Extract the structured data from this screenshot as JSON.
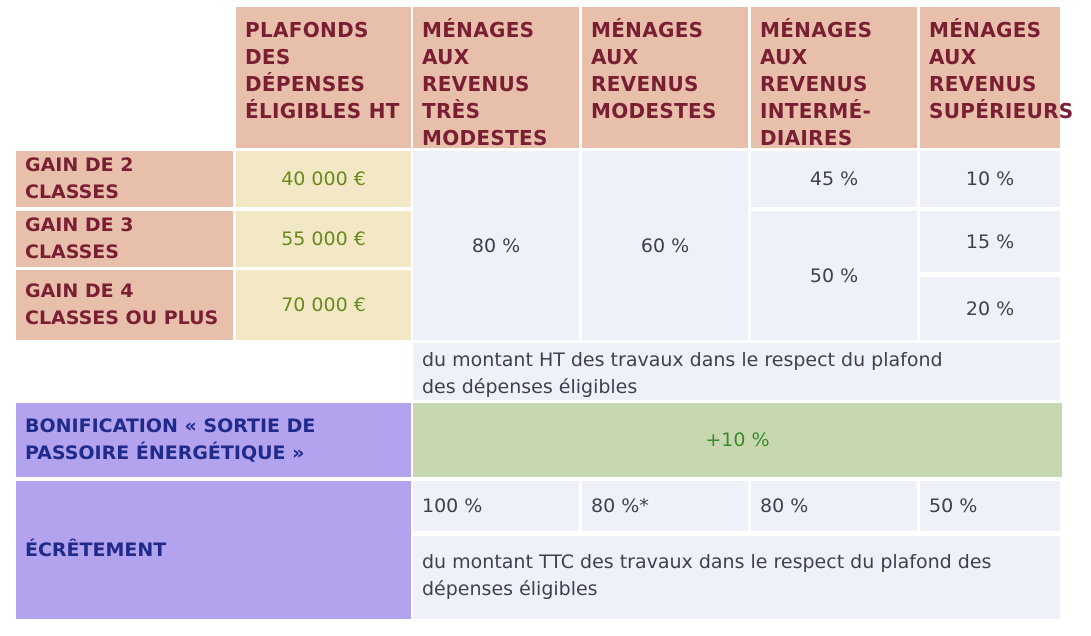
{
  "header": {
    "col1": "PLAFONDS DES DÉPENSES ÉLIGIBLES HT",
    "col2": "MÉNAGES AUX REVENUS TRÈS MODESTES",
    "col3": "MÉNAGES AUX REVENUS MODESTES",
    "col4": "MÉNAGES AUX REVENUS INTERMÉ- DIAIRES",
    "col5": "MÉNAGES AUX REVENUS SUPÉRIEURS"
  },
  "rows": [
    {
      "label": "GAIN DE 2 CLASSES",
      "ceiling": "40 000 €"
    },
    {
      "label": "GAIN DE 3 CLASSES",
      "ceiling": "55 000 €"
    },
    {
      "label": "GAIN DE 4 CLASSES OU PLUS",
      "ceiling": "70 000 €"
    }
  ],
  "rates": {
    "tres_modestes": "80 %",
    "modestes": "60 %",
    "intermediaires_2": "45 %",
    "intermediaires_3_4": "50 %",
    "superieurs_2": "10 %",
    "superieurs_3": "15 %",
    "superieurs_4": "20 %"
  },
  "note_ht": "du montant HT des travaux dans le respect du plafond des dépenses éligibles",
  "bonus": {
    "label": "BONIFICATION « SORTIE DE PASSOIRE ÉNERGÉTIQUE »",
    "value": "+10 %"
  },
  "ecretement": {
    "label": "ÉCRÊTEMENT",
    "values": [
      "100 %",
      "80 %*",
      "80 %",
      "50 %"
    ],
    "note": "du montant TTC des travaux dans le respect du plafond des dépenses éligibles"
  },
  "colors": {
    "header_bg": "#e8bfaa",
    "header_text": "#7a1f33",
    "price_bg": "#f3e8c6",
    "price_text": "#6a8a1d",
    "value_bg": "#eef1f8",
    "purple_bg": "#b3a3ee",
    "purple_text": "#1f2a8a",
    "bonus_bg": "#c7d8b0",
    "bonus_text": "#3d8a2a"
  }
}
